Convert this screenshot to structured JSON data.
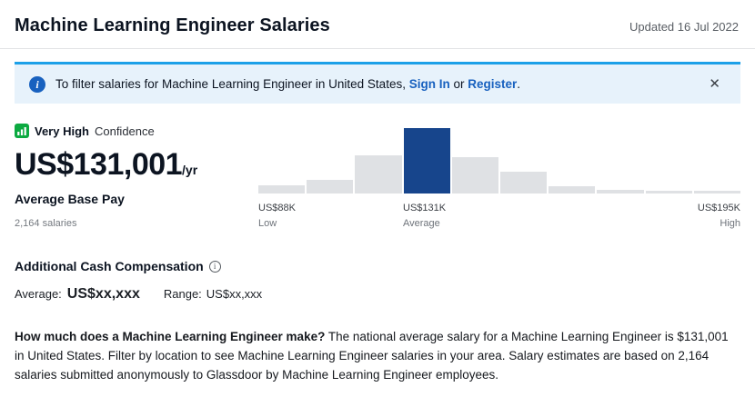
{
  "header": {
    "title": "Machine Learning Engineer Salaries",
    "updated": "Updated 16 Jul 2022"
  },
  "banner": {
    "text_before": "To filter salaries for Machine Learning Engineer in United States, ",
    "sign_in_label": "Sign In",
    "or_text": " or ",
    "register_label": "Register",
    "period": ".",
    "close_glyph": "✕"
  },
  "salary": {
    "confidence_level": "Very High",
    "confidence_word": "Confidence",
    "amount": "US$131,001",
    "per_suffix": "/yr",
    "base_pay_label": "Average Base Pay",
    "count": "2,164 salaries"
  },
  "chart_data": {
    "type": "bar",
    "values": [
      12.5,
      21,
      58,
      100,
      56,
      33,
      11,
      6,
      4,
      4
    ],
    "highlight_index": 3,
    "x_labels": {
      "low_value": "US$88K",
      "low_label": "Low",
      "avg_value": "US$131K",
      "avg_label": "Average",
      "high_value": "US$195K",
      "high_label": "High"
    },
    "xlim": [
      "US$88K",
      "US$195K"
    ],
    "legend": "none",
    "grid": false
  },
  "additional": {
    "title": "Additional Cash Compensation",
    "info_glyph": "i",
    "average_label": "Average:",
    "average_value": "US$xx,xxx",
    "range_label": "Range:",
    "range_value": "US$xx,xxx"
  },
  "description": {
    "lead": "How much does a Machine Learning Engineer make?",
    "body": " The national average salary for a Machine Learning Engineer is $131,001 in United States. Filter by location to see Machine Learning Engineer salaries in your area. Salary estimates are based on 2,164 salaries submitted anonymously to Glassdoor by Machine Learning Engineer employees."
  },
  "colors": {
    "link": "#1861bf",
    "banner_bg": "#e7f2fb",
    "banner_accent": "#1ca0e8",
    "confidence_green": "#0caa41",
    "bar": "#dfe1e4",
    "bar_highlight": "#17458c",
    "text_dark": "#0c1421"
  }
}
